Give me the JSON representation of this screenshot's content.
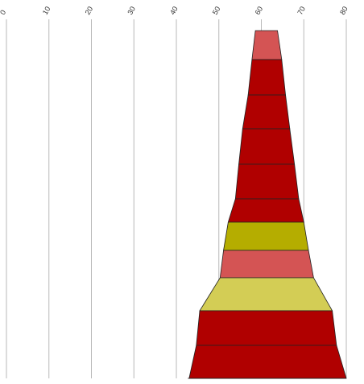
{
  "chart_data": {
    "type": "funnel",
    "title": "",
    "xlabel": "",
    "ylabel": "",
    "xlim": [
      0,
      80
    ],
    "grid": true,
    "tick_label_rotation_deg": -60,
    "ticks": [
      "0",
      "10",
      "20",
      "30",
      "40",
      "50",
      "60",
      "70",
      "80"
    ],
    "tick_values": [
      0,
      10,
      20,
      30,
      40,
      50,
      60,
      70,
      80
    ],
    "bands": [
      {
        "left": 58.6,
        "right": 63.8,
        "color": "#d45454"
      },
      {
        "left": 57.8,
        "right": 64.8,
        "color": "#b00000"
      },
      {
        "left": 56.9,
        "right": 65.7,
        "color": "#b00000"
      },
      {
        "left": 55.6,
        "right": 66.7,
        "color": "#b00000"
      },
      {
        "left": 54.7,
        "right": 67.8,
        "color": "#b00000"
      },
      {
        "left": 53.9,
        "right": 68.8,
        "color": "#b00000"
      },
      {
        "left": 52.2,
        "right": 70.0,
        "color": "#b5ad00"
      },
      {
        "left": 51.1,
        "right": 71.1,
        "color": "#d45454"
      },
      {
        "left": 50.3,
        "right": 72.3,
        "color": "#d3cd55"
      },
      {
        "left": 45.5,
        "right": 76.7,
        "color": "#b00000"
      },
      {
        "left": 44.7,
        "right": 77.7,
        "color": "#b00000"
      },
      {
        "left": 43.0,
        "right": 80.0,
        "color": "#d45454"
      }
    ]
  }
}
